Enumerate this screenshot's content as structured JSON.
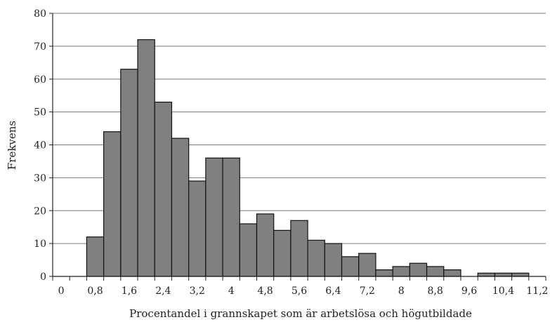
{
  "chart_data": {
    "type": "bar",
    "title": "",
    "xlabel": "Procentandel i grannskapet som är arbetslösa och högutbildade",
    "ylabel": "Frekvens",
    "ylim": [
      0,
      80
    ],
    "yticks": [
      "0",
      "10",
      "20",
      "30",
      "40",
      "50",
      "60",
      "70",
      "80"
    ],
    "xtick_labels": [
      "0",
      "0,8",
      "1,6",
      "2,4",
      "3,2",
      "4",
      "4,8",
      "5,6",
      "6,4",
      "7,2",
      "8",
      "8,8",
      "9,6",
      "10,4",
      "11,2"
    ],
    "bin_width": 0.4,
    "bins_start": [
      0.0,
      0.4,
      0.8,
      1.2,
      1.6,
      2.0,
      2.4,
      2.8,
      3.2,
      3.6,
      4.0,
      4.4,
      4.8,
      5.2,
      5.6,
      6.0,
      6.4,
      6.8,
      7.2,
      7.6,
      8.0,
      8.4,
      8.8,
      9.2,
      9.6,
      10.0,
      10.4,
      10.8,
      11.2
    ],
    "values": [
      0,
      0,
      12,
      44,
      63,
      72,
      53,
      42,
      29,
      36,
      36,
      16,
      19,
      14,
      17,
      11,
      10,
      6,
      7,
      2,
      3,
      4,
      3,
      2,
      0,
      1,
      1,
      1,
      0
    ],
    "grid": true,
    "bar_color": "#808080",
    "bar_edge_color": "#111111"
  }
}
